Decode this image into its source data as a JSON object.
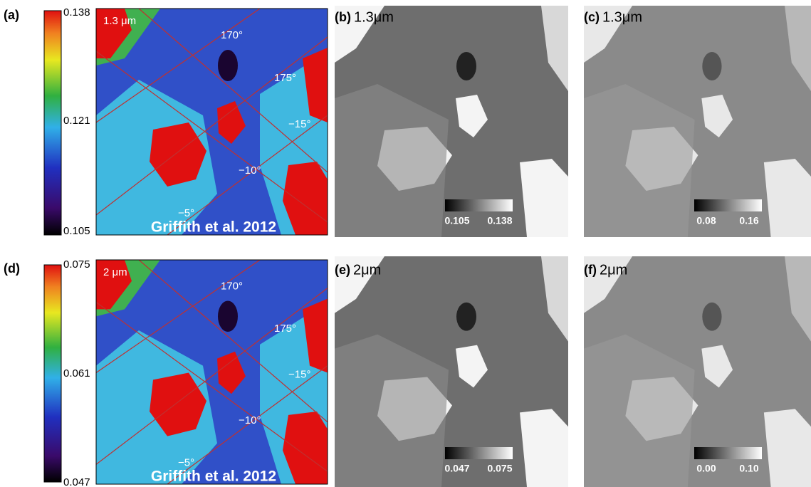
{
  "panels": [
    {
      "label": "(a)",
      "wavelength": "1.3 μm",
      "colorbar": [
        "0.138",
        "0.121",
        "0.105"
      ],
      "grid_labels": [
        "170°",
        "175°",
        "−15°",
        "−10°",
        "−5°"
      ],
      "credit": "Griffith et al. 2012"
    },
    {
      "label": "(b)",
      "wavelength": "1.3μm",
      "colorbar": [
        "0.105",
        "0.138"
      ]
    },
    {
      "label": "(c)",
      "wavelength": "1.3μm",
      "colorbar": [
        "0.08",
        "0.16"
      ]
    },
    {
      "label": "(d)",
      "wavelength": "2 μm",
      "colorbar": [
        "0.075",
        "0.061",
        "0.047"
      ],
      "grid_labels": [
        "170°",
        "175°",
        "−15°",
        "−10°",
        "−5°"
      ],
      "credit": "Griffith et al. 2012"
    },
    {
      "label": "(e)",
      "wavelength": "2μm",
      "colorbar": [
        "0.047",
        "0.075"
      ]
    },
    {
      "label": "(f)",
      "wavelength": "2μm",
      "colorbar": [
        "0.00",
        "0.10"
      ]
    }
  ]
}
